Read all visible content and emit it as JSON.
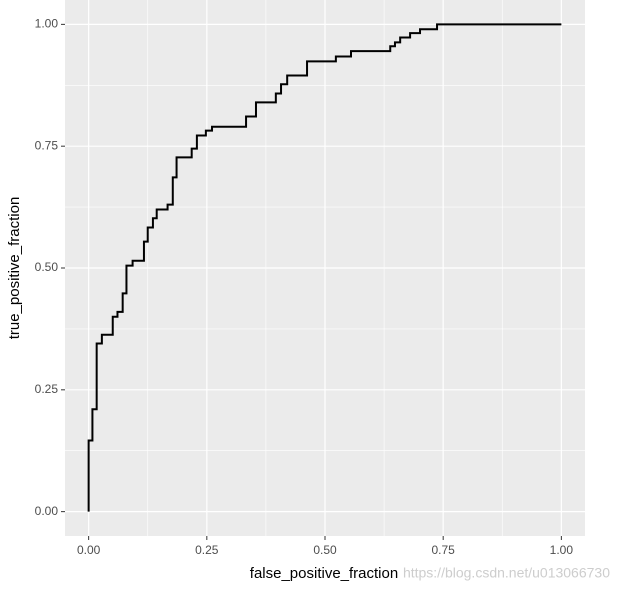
{
  "chart_data": {
    "type": "step",
    "xlabel": "false_positive_fraction",
    "ylabel": "true_positive_fraction",
    "annotation": "https://blog.csdn.net/u013066730",
    "color": "#000000",
    "x": [
      0,
      0,
      0.008,
      0.008,
      0.017,
      0.017,
      0.028,
      0.028,
      0.051,
      0.051,
      0.061,
      0.061,
      0.072,
      0.072,
      0.08,
      0.08,
      0.093,
      0.093,
      0.117,
      0.117,
      0.125,
      0.125,
      0.136,
      0.136,
      0.144,
      0.144,
      0.167,
      0.167,
      0.178,
      0.178,
      0.186,
      0.186,
      0.218,
      0.218,
      0.229,
      0.229,
      0.248,
      0.248,
      0.261,
      0.261,
      0.333,
      0.333,
      0.354,
      0.354,
      0.396,
      0.396,
      0.407,
      0.407,
      0.42,
      0.42,
      0.462,
      0.462,
      0.523,
      0.523,
      0.555,
      0.555,
      0.638,
      0.638,
      0.648,
      0.648,
      0.659,
      0.659,
      0.68,
      0.68,
      0.701,
      0.701,
      0.737,
      0.737,
      1
    ],
    "values": [
      0,
      0.146,
      0.146,
      0.21,
      0.21,
      0.345,
      0.345,
      0.363,
      0.363,
      0.4,
      0.4,
      0.41,
      0.41,
      0.448,
      0.448,
      0.505,
      0.505,
      0.515,
      0.515,
      0.554,
      0.554,
      0.583,
      0.583,
      0.602,
      0.602,
      0.62,
      0.62,
      0.63,
      0.63,
      0.686,
      0.686,
      0.727,
      0.727,
      0.745,
      0.745,
      0.772,
      0.772,
      0.782,
      0.782,
      0.79,
      0.79,
      0.811,
      0.811,
      0.84,
      0.84,
      0.858,
      0.858,
      0.877,
      0.877,
      0.895,
      0.895,
      0.924,
      0.924,
      0.934,
      0.934,
      0.945,
      0.945,
      0.955,
      0.955,
      0.963,
      0.963,
      0.973,
      0.973,
      0.982,
      0.982,
      0.99,
      0.99,
      1,
      1
    ],
    "xlim": [
      -0.05,
      1.05
    ],
    "ylim": [
      -0.05,
      1.05
    ],
    "xticks": [
      {
        "value": 0,
        "label": "0.00"
      },
      {
        "value": 0.25,
        "label": "0.25"
      },
      {
        "value": 0.5,
        "label": "0.50"
      },
      {
        "value": 0.75,
        "label": "0.75"
      },
      {
        "value": 1,
        "label": "1.00"
      }
    ],
    "yticks": [
      {
        "value": 0,
        "label": "0.00"
      },
      {
        "value": 0.25,
        "label": "0.25"
      },
      {
        "value": 0.5,
        "label": "0.50"
      },
      {
        "value": 0.75,
        "label": "0.75"
      },
      {
        "value": 1,
        "label": "1.00"
      }
    ],
    "xminor": [
      0.125,
      0.375,
      0.625,
      0.875
    ],
    "yminor": [
      0.125,
      0.375,
      0.625,
      0.875
    ],
    "grid": true
  }
}
